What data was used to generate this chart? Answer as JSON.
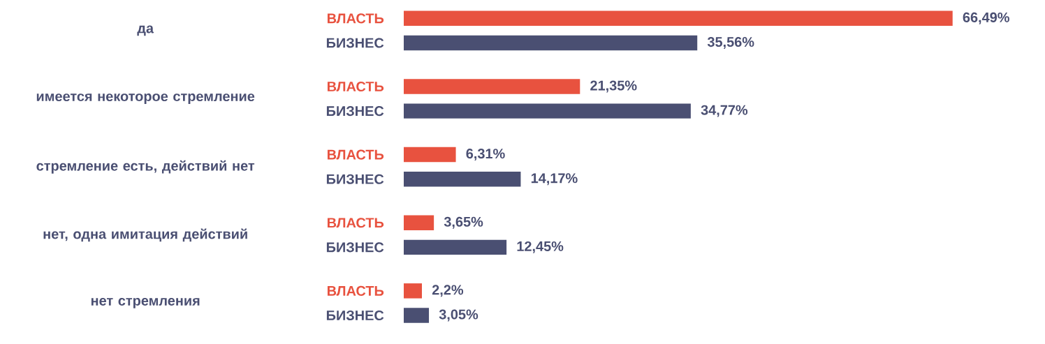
{
  "chart_data": {
    "type": "bar",
    "orientation": "horizontal",
    "categories": [
      "да",
      "имеется некоторое стремление",
      "стремление есть, действий нет",
      "нет, одна имитация действий",
      "нет стремления"
    ],
    "series": [
      {
        "name": "ВЛАСТЬ",
        "color": "#e8523f",
        "values": [
          66.49,
          21.35,
          6.31,
          3.65,
          2.2
        ],
        "value_labels": [
          "66,49%",
          "21,35%",
          "6,31%",
          "3,65%",
          "2,2%"
        ]
      },
      {
        "name": "БИЗНЕС",
        "color": "#4a4f72",
        "values": [
          35.56,
          34.77,
          14.17,
          12.45,
          3.05
        ],
        "value_labels": [
          "35,56%",
          "34,77%",
          "14,17%",
          "12,45%",
          "3,05%"
        ]
      }
    ],
    "tick_labels": "y"
  }
}
